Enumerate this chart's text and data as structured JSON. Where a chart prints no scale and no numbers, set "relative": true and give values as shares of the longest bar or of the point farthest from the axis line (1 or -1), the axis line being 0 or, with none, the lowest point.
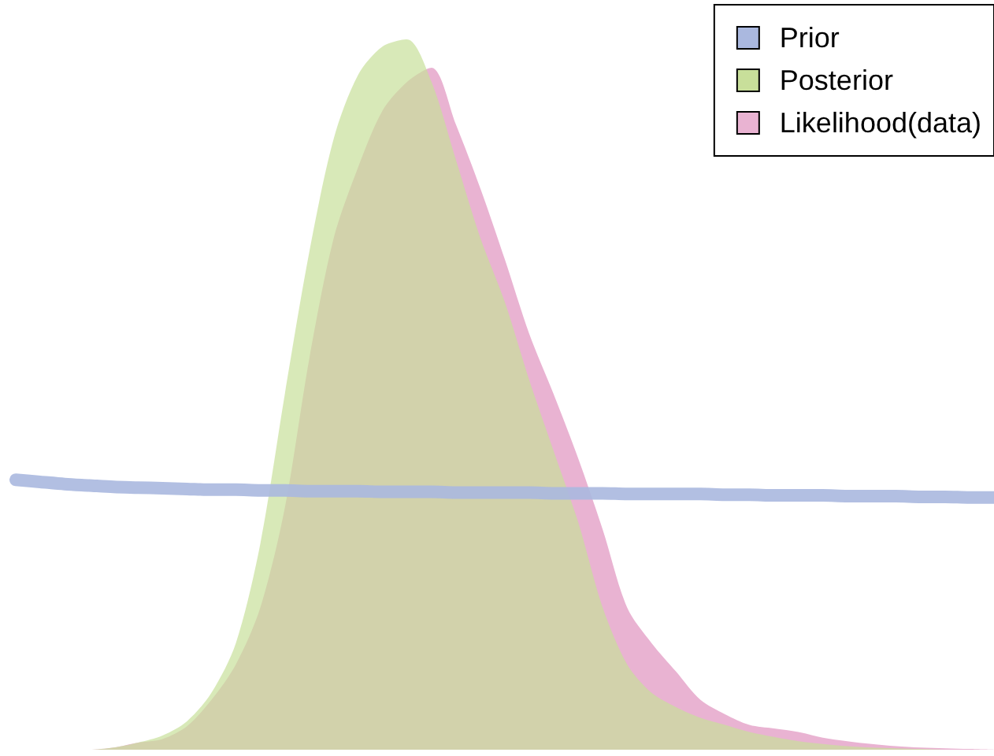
{
  "chart_data": {
    "type": "area",
    "relative": true,
    "legend": "top right",
    "categories": [
      null,
      null,
      null,
      null,
      null,
      null,
      null,
      null,
      null,
      null,
      null,
      null,
      null,
      null,
      null,
      null,
      null,
      null,
      null,
      null,
      null,
      null,
      null,
      null,
      null,
      null,
      null,
      null,
      null,
      null,
      null,
      null,
      null,
      null,
      null,
      null,
      null,
      null,
      null,
      null,
      null
    ],
    "series": [
      {
        "name": "Prior",
        "type": "line",
        "color": "#aab8df",
        "values": [
          0.38,
          0.377,
          0.374,
          0.372,
          0.37,
          0.369,
          0.368,
          0.367,
          0.366,
          0.366,
          0.365,
          0.365,
          0.364,
          0.364,
          0.364,
          0.363,
          0.363,
          0.363,
          0.362,
          0.362,
          0.362,
          0.362,
          0.361,
          0.361,
          0.361,
          0.36,
          0.36,
          0.36,
          0.36,
          0.359,
          0.359,
          0.358,
          0.358,
          0.358,
          0.357,
          0.357,
          0.357,
          0.356,
          0.356,
          0.355,
          0.355
        ]
      },
      {
        "name": "Posterior",
        "color": "#c8df9a",
        "values": [
          0,
          0,
          0,
          0,
          0.003,
          0.01,
          0.02,
          0.04,
          0.08,
          0.15,
          0.29,
          0.5,
          0.7,
          0.86,
          0.95,
          0.99,
          1,
          0.94,
          0.83,
          0.72,
          0.63,
          0.52,
          0.42,
          0.32,
          0.2,
          0.12,
          0.08,
          0.06,
          0.045,
          0.035,
          0.025,
          0.018,
          0.012,
          0.008,
          0.005,
          0.003,
          0.002,
          0.001,
          0,
          0,
          0
        ]
      },
      {
        "name": "Likelihood(data)",
        "color": "#e9b3d2",
        "values": [
          0,
          0,
          0,
          0,
          0.003,
          0.01,
          0.015,
          0.033,
          0.07,
          0.12,
          0.2,
          0.34,
          0.55,
          0.72,
          0.82,
          0.9,
          0.94,
          0.96,
          0.88,
          0.79,
          0.69,
          0.585,
          0.5,
          0.41,
          0.31,
          0.2,
          0.15,
          0.11,
          0.07,
          0.05,
          0.035,
          0.03,
          0.025,
          0.017,
          0.012,
          0.008,
          0.005,
          0.003,
          0.002,
          0.001,
          0
        ]
      }
    ]
  }
}
